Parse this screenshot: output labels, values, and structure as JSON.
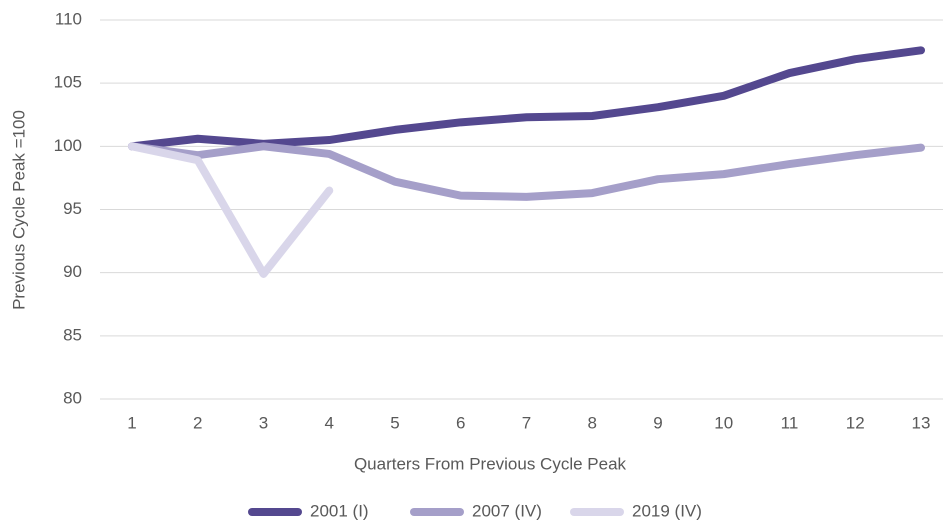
{
  "chart_data": {
    "type": "line",
    "y_label": "Previous Cycle Peak =100",
    "x_label": "Quarters From Previous Cycle Peak",
    "categories": [
      "1",
      "2",
      "3",
      "4",
      "5",
      "6",
      "7",
      "8",
      "9",
      "10",
      "11",
      "12",
      "13"
    ],
    "series": [
      {
        "name": "2001 (I)",
        "color": "#54488f",
        "values": [
          100,
          100.6,
          100.2,
          100.5,
          101.3,
          101.9,
          102.3,
          102.4,
          103.1,
          104.0,
          105.8,
          106.9,
          107.6
        ]
      },
      {
        "name": "2007 (IV)",
        "color": "#a59fc9",
        "values": [
          100,
          99.3,
          100.0,
          99.4,
          97.2,
          96.1,
          96.0,
          96.3,
          97.4,
          97.8,
          98.6,
          99.3,
          99.9
        ]
      },
      {
        "name": "2019 (IV)",
        "color": "#d9d6ea",
        "values": [
          100,
          98.9,
          89.9,
          96.5,
          null,
          null,
          null,
          null,
          null,
          null,
          null,
          null,
          null
        ]
      }
    ],
    "ylim": [
      80,
      110
    ],
    "yticks": [
      80,
      85,
      90,
      95,
      100,
      105,
      110
    ],
    "grid": true,
    "legend": "bottom"
  }
}
